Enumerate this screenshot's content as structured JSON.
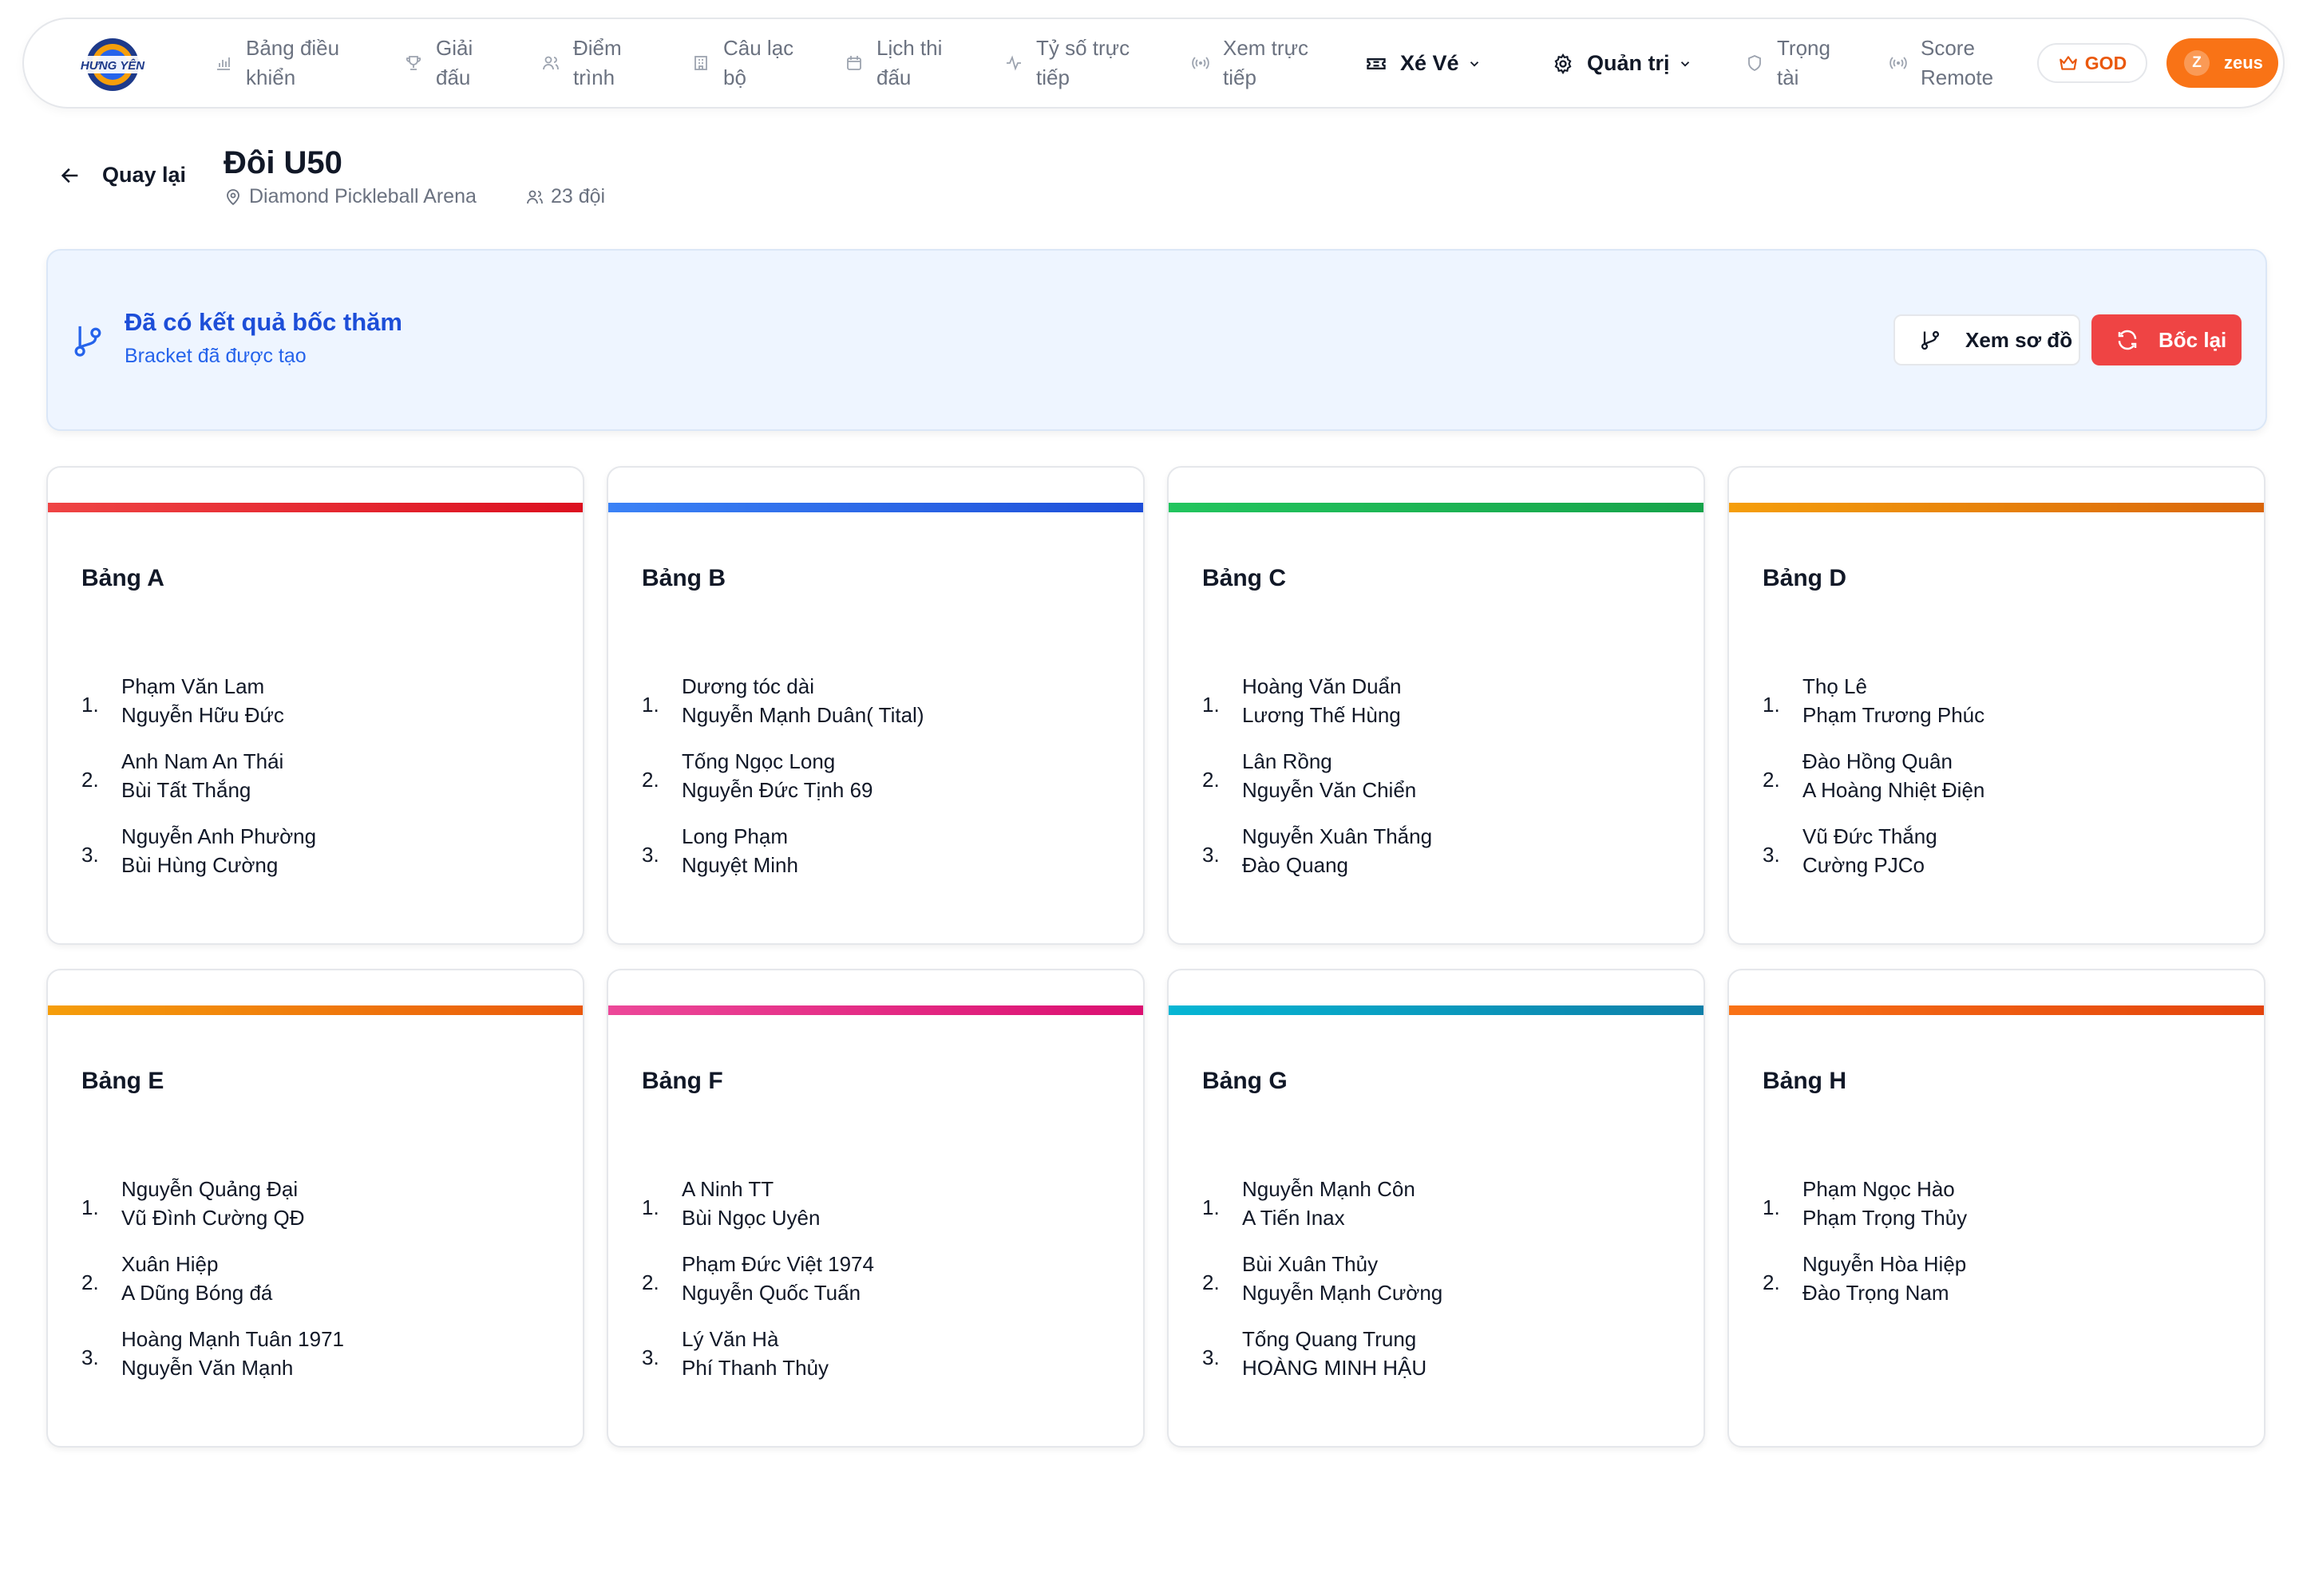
{
  "nav": {
    "logo_text": "HƯNG YÊN",
    "items": [
      {
        "label": "Bảng điều\nkhiển",
        "icon": "bar-chart-icon"
      },
      {
        "label": "Giải\nđấu",
        "icon": "trophy-icon"
      },
      {
        "label": "Điểm\ntrình",
        "icon": "users-icon"
      },
      {
        "label": "Câu lạc\nbộ",
        "icon": "building-icon"
      },
      {
        "label": "Lịch thi\nđấu",
        "icon": "calendar-icon"
      },
      {
        "label": "Tỷ số trực\ntiếp",
        "icon": "activity-icon"
      },
      {
        "label": "Xem trực\ntiếp",
        "icon": "broadcast-icon"
      },
      {
        "label": "Trọng\ntài",
        "icon": "shield-icon"
      },
      {
        "label": "Score\nRemote",
        "icon": "broadcast-icon"
      }
    ],
    "ticket_menu": "Xé Vé",
    "admin_menu": "Quản trị",
    "god_badge": "GOD",
    "user_initial": "Z",
    "user_name": "zeus"
  },
  "header": {
    "back_label": "Quay lại",
    "title": "Đôi U50",
    "venue": "Diamond Pickleball Arena",
    "team_count": "23 đội"
  },
  "banner": {
    "title": "Đã có kết quả bốc thăm",
    "subtitle": "Bracket đã được tạo",
    "view_button": "Xem sơ đồ",
    "redraw_button": "Bốc lại"
  },
  "groups": [
    {
      "name": "Bảng A",
      "color_from": "#ef4444",
      "color_to": "#dc0f1f",
      "teams": [
        [
          "Phạm Văn Lam",
          "Nguyễn Hữu Đức"
        ],
        [
          "Anh Nam An Thái",
          "Bùi Tất Thắng"
        ],
        [
          "Nguyễn Anh Phường",
          "Bùi Hùng Cường"
        ]
      ]
    },
    {
      "name": "Bảng B",
      "color_from": "#3b82f6",
      "color_to": "#1d4ed8",
      "teams": [
        [
          "Dương tóc dài",
          "Nguyễn Mạnh Duân( Tital)"
        ],
        [
          "Tống Ngọc Long",
          "Nguyễn Đức Tịnh 69"
        ],
        [
          "Long Phạm",
          "Nguyệt Minh"
        ]
      ]
    },
    {
      "name": "Bảng C",
      "color_from": "#22c55e",
      "color_to": "#16a34a",
      "teams": [
        [
          "Hoàng Văn Duẩn",
          "Lương Thế Hùng"
        ],
        [
          "Lân Rồng",
          "Nguyễn Văn Chiển"
        ],
        [
          "Nguyễn Xuân Thắng",
          "Đào Quang"
        ]
      ]
    },
    {
      "name": "Bảng D",
      "color_from": "#f59e0b",
      "color_to": "#d9650a",
      "teams": [
        [
          "Thọ Lê",
          "Phạm Trương Phúc"
        ],
        [
          "Đào Hồng Quân",
          "A Hoàng Nhiệt Điện"
        ],
        [
          "Vũ Đức Thắng",
          "Cường PJCo"
        ]
      ]
    },
    {
      "name": "Bảng E",
      "color_from": "#f59e0b",
      "color_to": "#ea580c",
      "teams": [
        [
          "Nguyễn Quảng Đại",
          "Vũ Đình Cường QĐ"
        ],
        [
          "Xuân Hiệp",
          "A Dũng Bóng đá"
        ],
        [
          "Hoàng Mạnh Tuân 1971",
          "Nguyễn Văn Mạnh"
        ]
      ]
    },
    {
      "name": "Bảng F",
      "color_from": "#ec4899",
      "color_to": "#db0f70",
      "teams": [
        [
          "A Ninh TT",
          "Bùi Ngọc Uyên"
        ],
        [
          "Phạm Đức Việt 1974",
          "Nguyễn Quốc Tuấn"
        ],
        [
          "Lý Văn Hà",
          "Phí Thanh Thủy"
        ]
      ]
    },
    {
      "name": "Bảng G",
      "color_from": "#06b6d4",
      "color_to": "#0e7fa8",
      "teams": [
        [
          "Nguyễn Mạnh Côn",
          "A Tiến Inax"
        ],
        [
          "Bùi Xuân Thủy",
          "Nguyễn Mạnh Cường"
        ],
        [
          "Tống Quang Trung",
          "HOÀNG MINH HẬU"
        ]
      ]
    },
    {
      "name": "Bảng H",
      "color_from": "#f97316",
      "color_to": "#e3430c",
      "teams": [
        [
          "Phạm Ngọc Hào",
          "Phạm Trọng Thủy"
        ],
        [
          "Nguyễn Hòa Hiệp",
          "Đào Trọng Nam"
        ]
      ]
    }
  ]
}
